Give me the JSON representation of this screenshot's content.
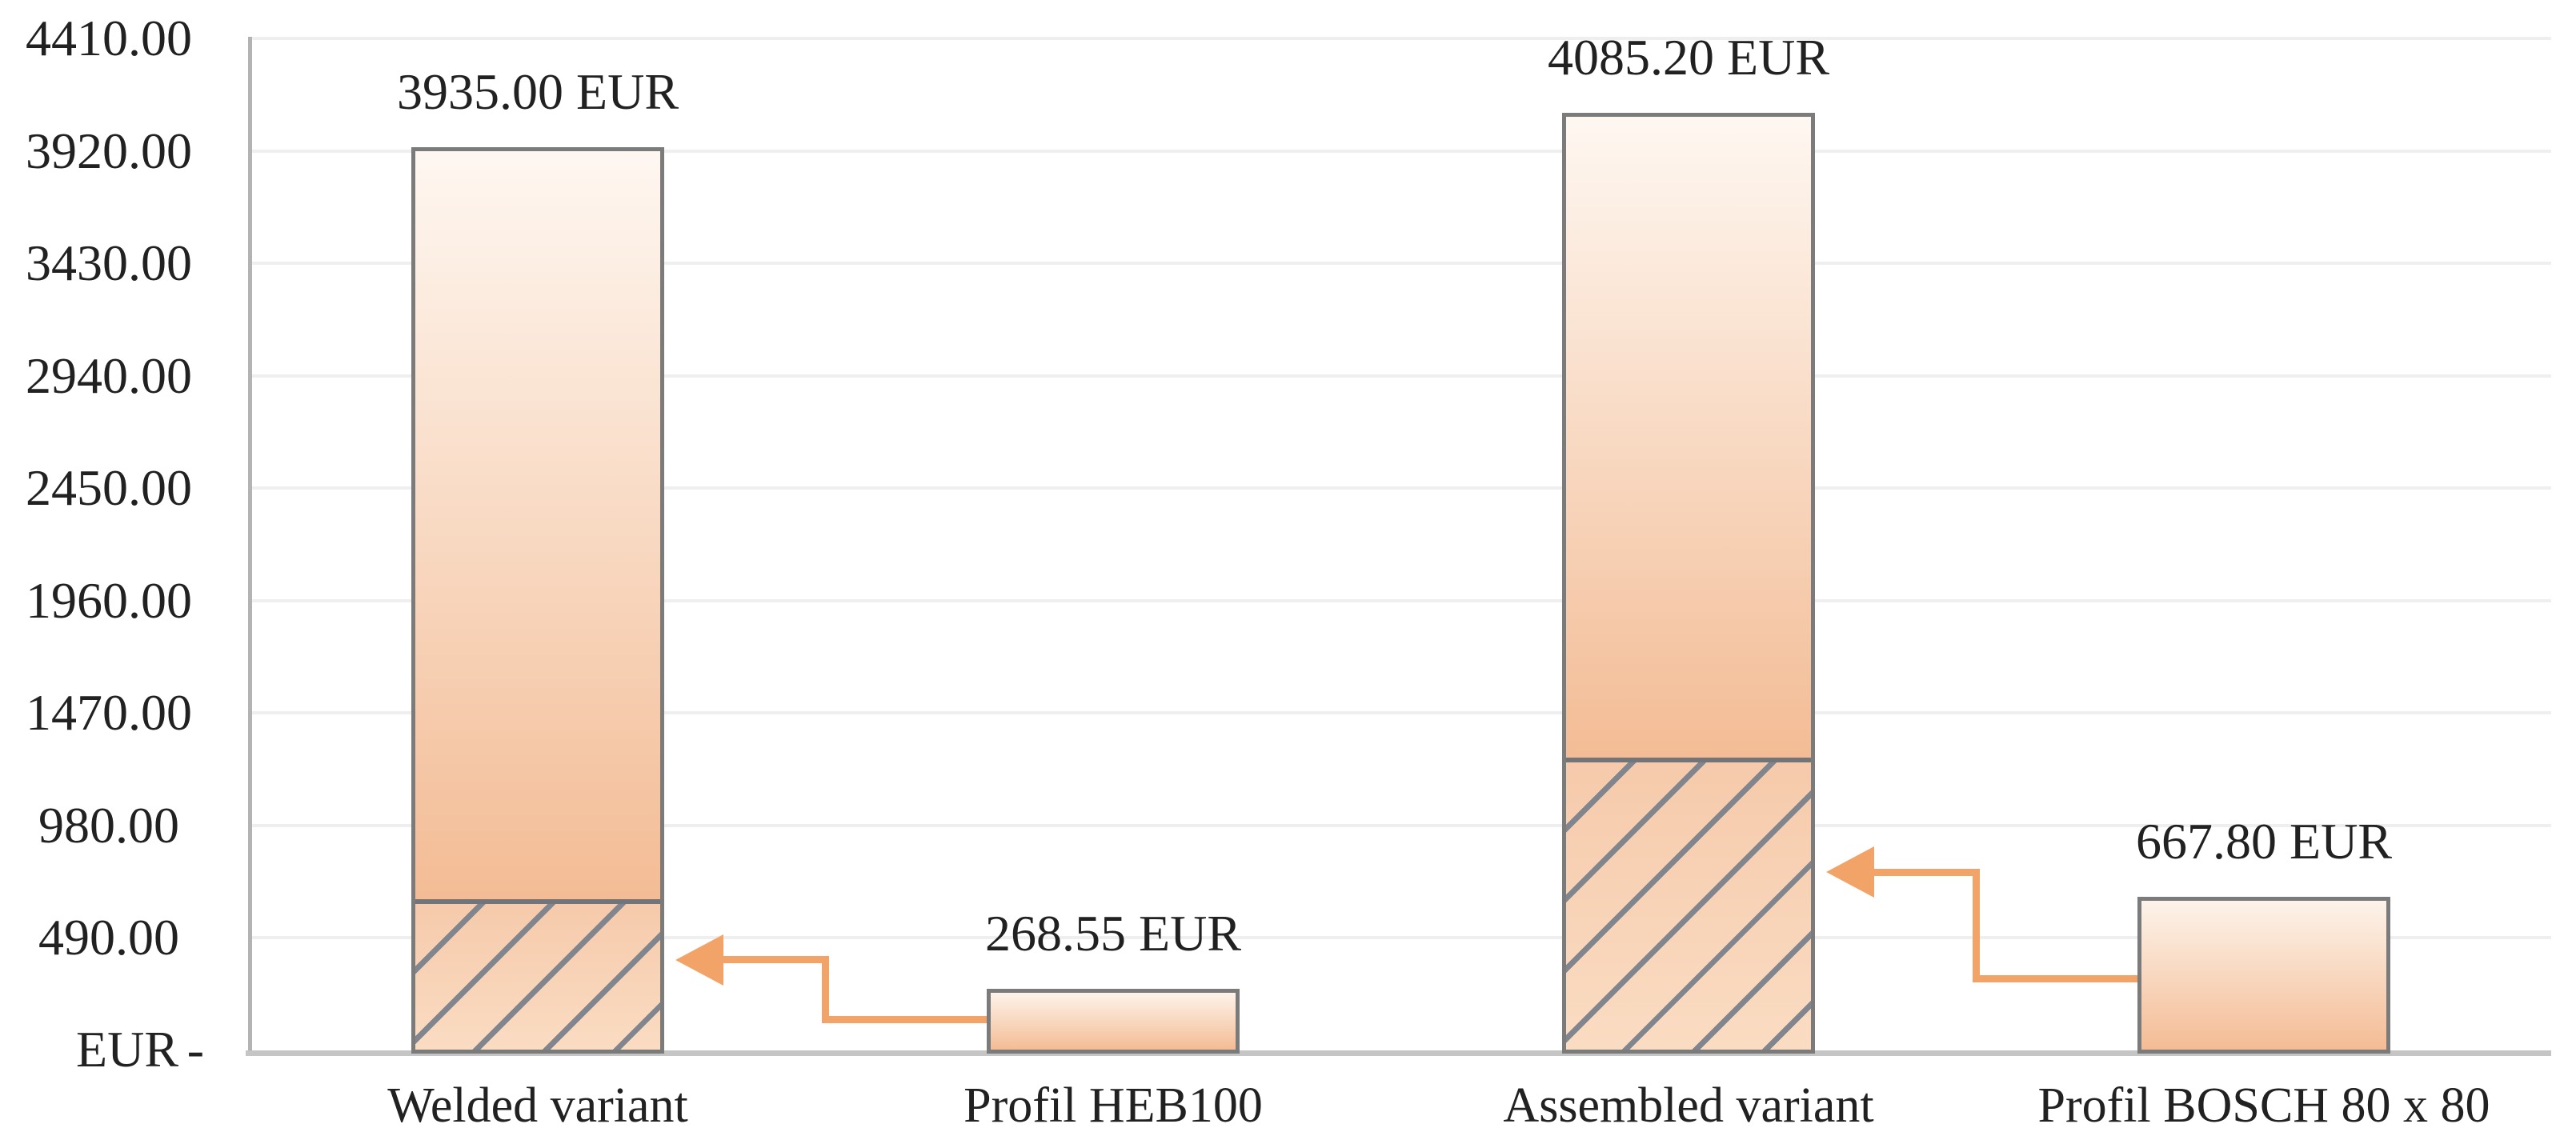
{
  "chart_data": {
    "type": "bar",
    "title": "",
    "currency_unit": "EUR",
    "categories": [
      "Welded variant",
      "Profil HEB100",
      "Assembled variant",
      "Profil BOSCH 80 x 80"
    ],
    "values": [
      3935.0,
      268.55,
      4085.2,
      667.8
    ],
    "bars": [
      {
        "category": "Welded variant",
        "value": 3935.0,
        "data_label": "3935.00 EUR",
        "hatched_lower_segment": true,
        "hatch_top_value": 658
      },
      {
        "category": "Profil HEB100",
        "value": 268.55,
        "data_label": "268.55 EUR",
        "hatched_lower_segment": false,
        "hatch_top_value": 0
      },
      {
        "category": "Assembled variant",
        "value": 4085.2,
        "data_label": "4085.20 EUR",
        "hatched_lower_segment": true,
        "hatch_top_value": 1277
      },
      {
        "category": "Profil BOSCH 80 x 80",
        "value": 667.8,
        "data_label": "667.80 EUR",
        "hatched_lower_segment": false,
        "hatch_top_value": 0
      }
    ],
    "y_axis": {
      "min": 0,
      "max": 4410,
      "step": 490,
      "tick_labels": [
        "4410.00",
        "3920.00",
        "3430.00",
        "2940.00",
        "2450.00",
        "1960.00",
        "1470.00",
        "980.00",
        "490.00"
      ],
      "zero_tick_currency": "EUR",
      "zero_tick_dash": "-"
    },
    "grid": true,
    "legend": false,
    "callout_arrows": [
      {
        "from_category": "Profil HEB100",
        "to_category": "Welded variant",
        "points_to_value": 395,
        "start_at_value": 134
      },
      {
        "from_category": "Profil BOSCH 80 x 80",
        "to_category": "Assembled variant",
        "points_to_value": 776,
        "start_at_value": 312
      }
    ]
  },
  "colors": {
    "background": "#ffffff",
    "text": "#212121",
    "grid_line": "#efefef",
    "axis_line": "#c5c5c5",
    "y_axis_line": "#b3b3b3",
    "bar_border": "#7b7b7b",
    "hatch_line": "#81868e",
    "hatch_separator": "#717479",
    "arrow": "#f2a468",
    "bar_top_gradient_start": "#fef7f1",
    "bar_top_gradient_end": "#f3bc95",
    "hatch_gradient_start": "#f6caab",
    "hatch_gradient_end": "#fadcc2",
    "small_bar_gradient_start": "#fdf3ea",
    "small_bar_gradient_end": "#f4bc95"
  }
}
